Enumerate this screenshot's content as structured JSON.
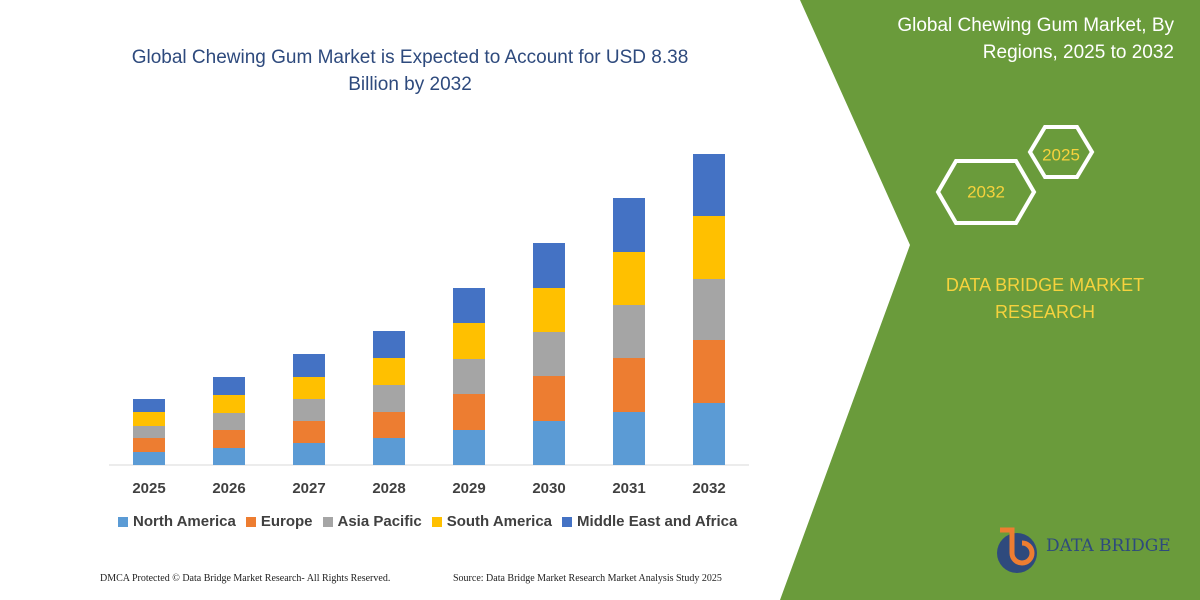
{
  "chart_data": {
    "type": "bar",
    "stacked": true,
    "title": "Global Chewing Gum Market is Expected to Account for USD 8.38 Billion by 2032",
    "categories": [
      "2025",
      "2026",
      "2027",
      "2028",
      "2029",
      "2030",
      "2031",
      "2032"
    ],
    "series": [
      {
        "name": "North America",
        "color": "#5b9bd5",
        "values": [
          13,
          17,
          22,
          27,
          35,
          44,
          53,
          62
        ]
      },
      {
        "name": "Europe",
        "color": "#ed7d31",
        "values": [
          14,
          18,
          22,
          26,
          36,
          45,
          54,
          63
        ]
      },
      {
        "name": "Asia Pacific",
        "color": "#a5a5a5",
        "values": [
          12,
          17,
          22,
          27,
          35,
          44,
          53,
          61
        ]
      },
      {
        "name": "South America",
        "color": "#ffc000",
        "values": [
          14,
          18,
          22,
          27,
          36,
          44,
          53,
          63
        ]
      },
      {
        "name": "Middle East and Africa",
        "color": "#4472c4",
        "values": [
          13,
          18,
          23,
          27,
          35,
          45,
          54,
          62
        ]
      }
    ],
    "ylim": [
      0,
      311
    ]
  },
  "panel": {
    "title": "Global Chewing Gum Market, By Regions, 2025 to 2032",
    "hexagons": [
      "2025",
      "2032"
    ],
    "brand": "DATA BRIDGE MARKET RESEARCH",
    "logo": "DATA BRIDGE"
  },
  "footer": {
    "left": "DMCA Protected © Data Bridge Market Research- All Rights Reserved.",
    "right": "Source: Data Bridge Market Research  Market Analysis Study 2025"
  }
}
